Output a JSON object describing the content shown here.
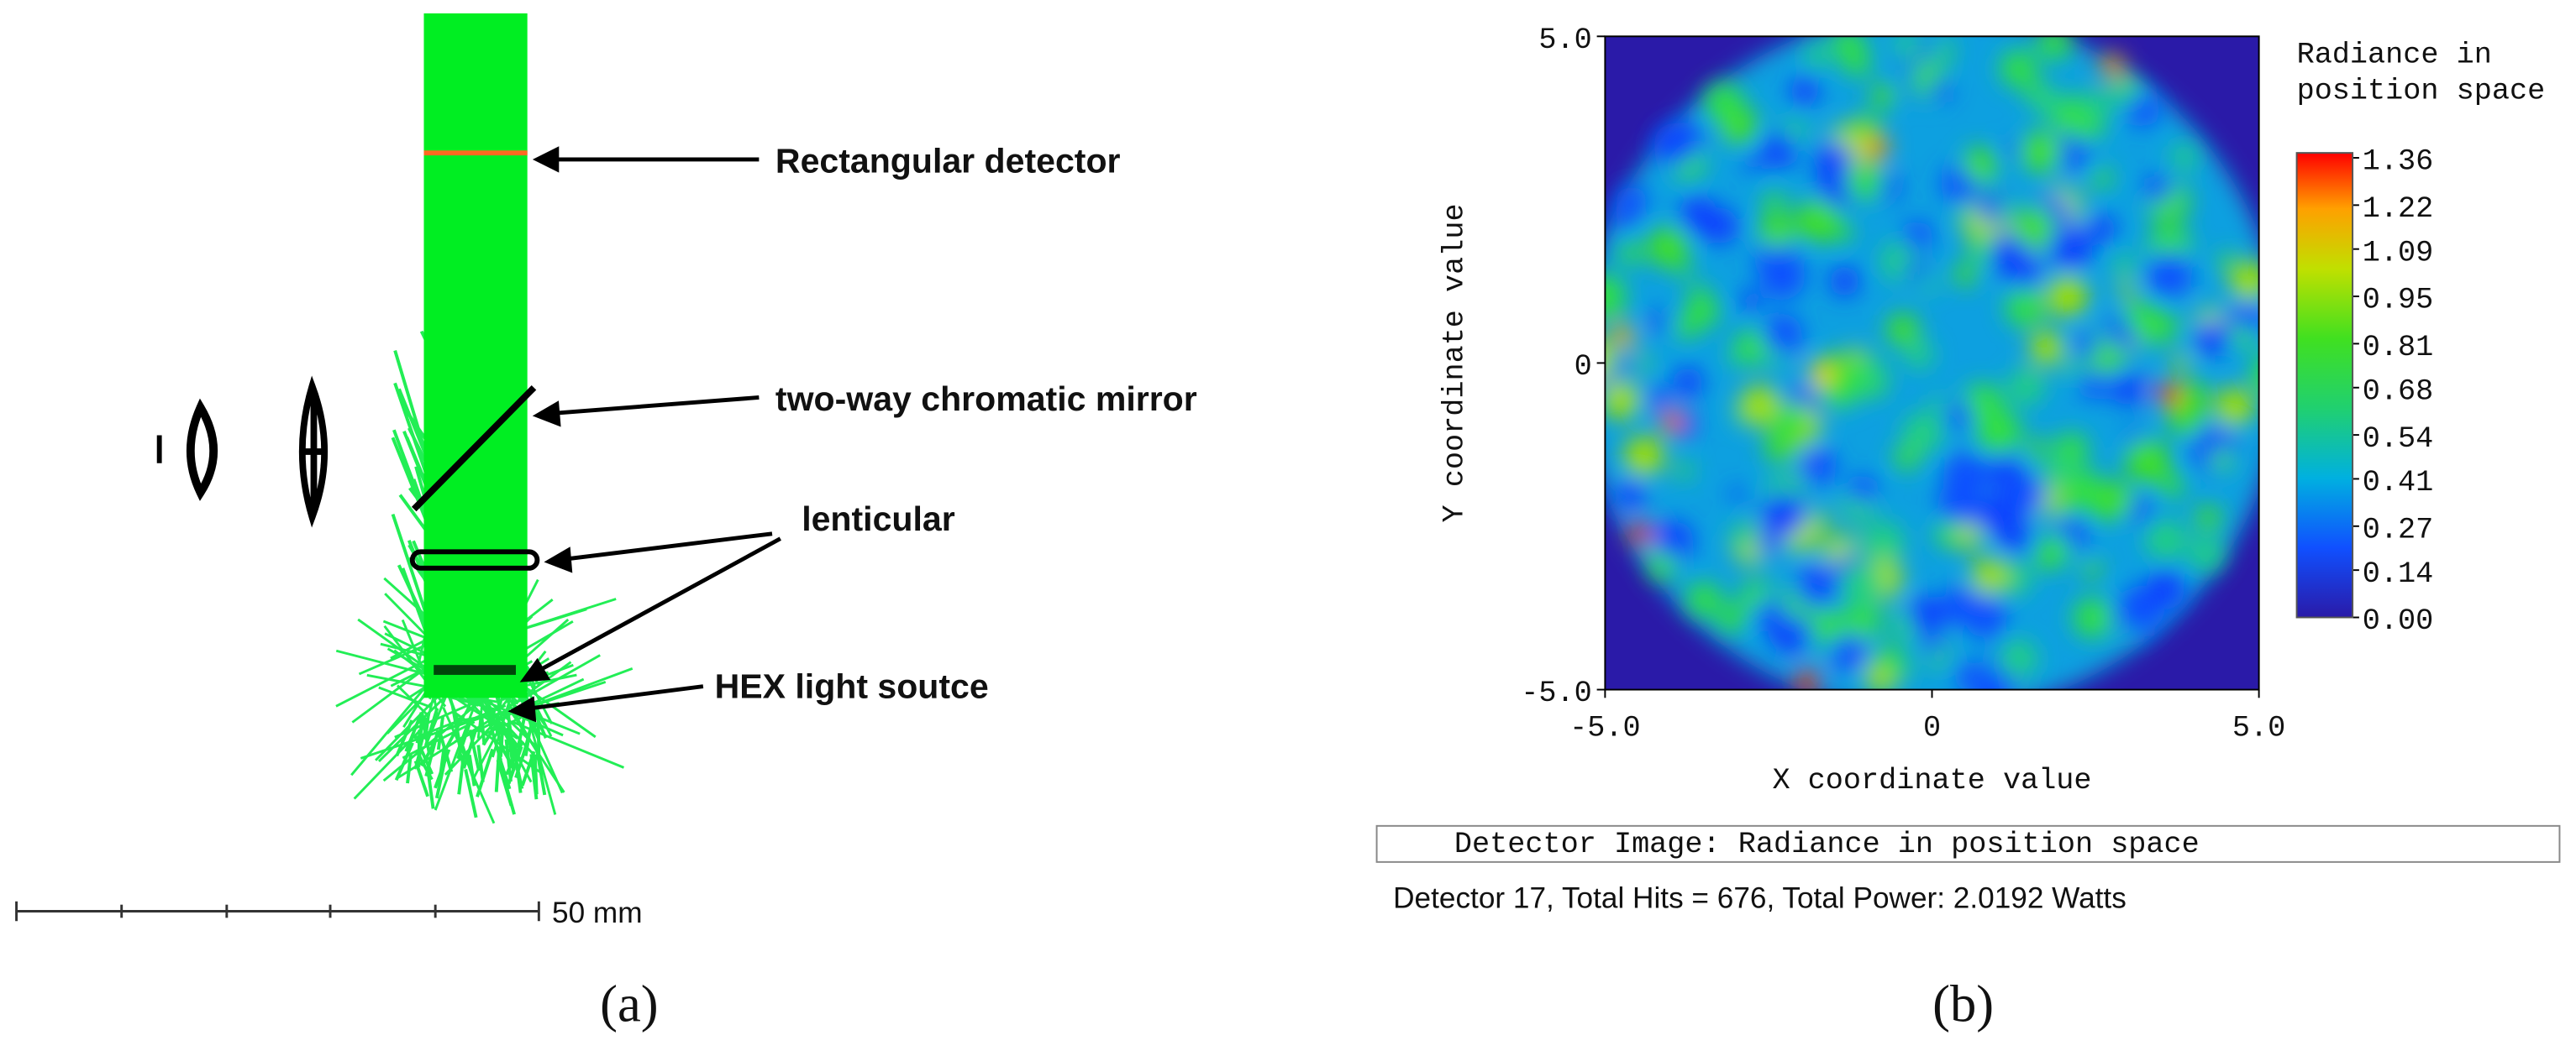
{
  "panel_a": {
    "annotations": [
      "Rectangular detector",
      "two-way chromatic mirror",
      "lenticular",
      "HEX light soutce"
    ],
    "scale_label": "50 mm",
    "caption": "(a)"
  },
  "chart_data": {
    "type": "heatmap",
    "title": "Detector Image: Radiance in position space",
    "info": "Detector 17, Total Hits = 676, Total Power: 2.0192 Watts",
    "xlabel": "X coordinate value",
    "ylabel": "Y coordinate value",
    "colorbar_title": [
      "Radiance in",
      "position space"
    ],
    "xlim": [
      -5,
      5
    ],
    "ylim": [
      -5,
      5
    ],
    "xticks": [
      {
        "value": -5,
        "label": "-5.0"
      },
      0,
      {
        "value": 5,
        "label": "5.0"
      }
    ],
    "yticks": [
      {
        "value": -5,
        "label": "-5.0"
      },
      0,
      {
        "value": 5,
        "label": "5.0"
      }
    ],
    "clim": [
      0,
      1.36
    ],
    "colorbar_ticks": [
      1.36,
      1.22,
      1.09,
      0.95,
      0.81,
      0.68,
      0.54,
      0.41,
      0.27,
      0.14,
      {
        "value": 0,
        "label": "0.00"
      }
    ],
    "caption": "(b)"
  }
}
